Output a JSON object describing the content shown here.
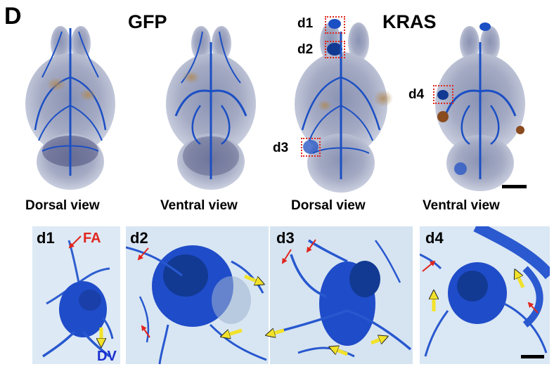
{
  "figure": {
    "panel_letter": "D",
    "groups": [
      {
        "title": "GFP"
      },
      {
        "title": "KRAS"
      }
    ],
    "views": [
      {
        "label": "Dorsal view"
      },
      {
        "label": "Ventral view"
      },
      {
        "label": "Dorsal view"
      },
      {
        "label": "Ventral view"
      }
    ],
    "regions": [
      {
        "label": "d1"
      },
      {
        "label": "d2"
      },
      {
        "label": "d3"
      },
      {
        "label": "d4"
      }
    ],
    "insets": [
      {
        "label": "d1"
      },
      {
        "label": "d2"
      },
      {
        "label": "d3"
      },
      {
        "label": "d4"
      }
    ],
    "annotations": {
      "fa_label": "FA",
      "dv_label": "DV"
    },
    "colors": {
      "vessel": "#1b4fc4",
      "vessel_dark": "#123a93",
      "tissue": "#c6cbd6",
      "tissue_tan": "#c9ab7c",
      "highlight_box": "#e0261e",
      "red_arrow": "#e0261e",
      "yellow_arrow": "#f2e22a",
      "fa_color": "#e0261e",
      "dv_color": "#1a2fd0"
    }
  }
}
